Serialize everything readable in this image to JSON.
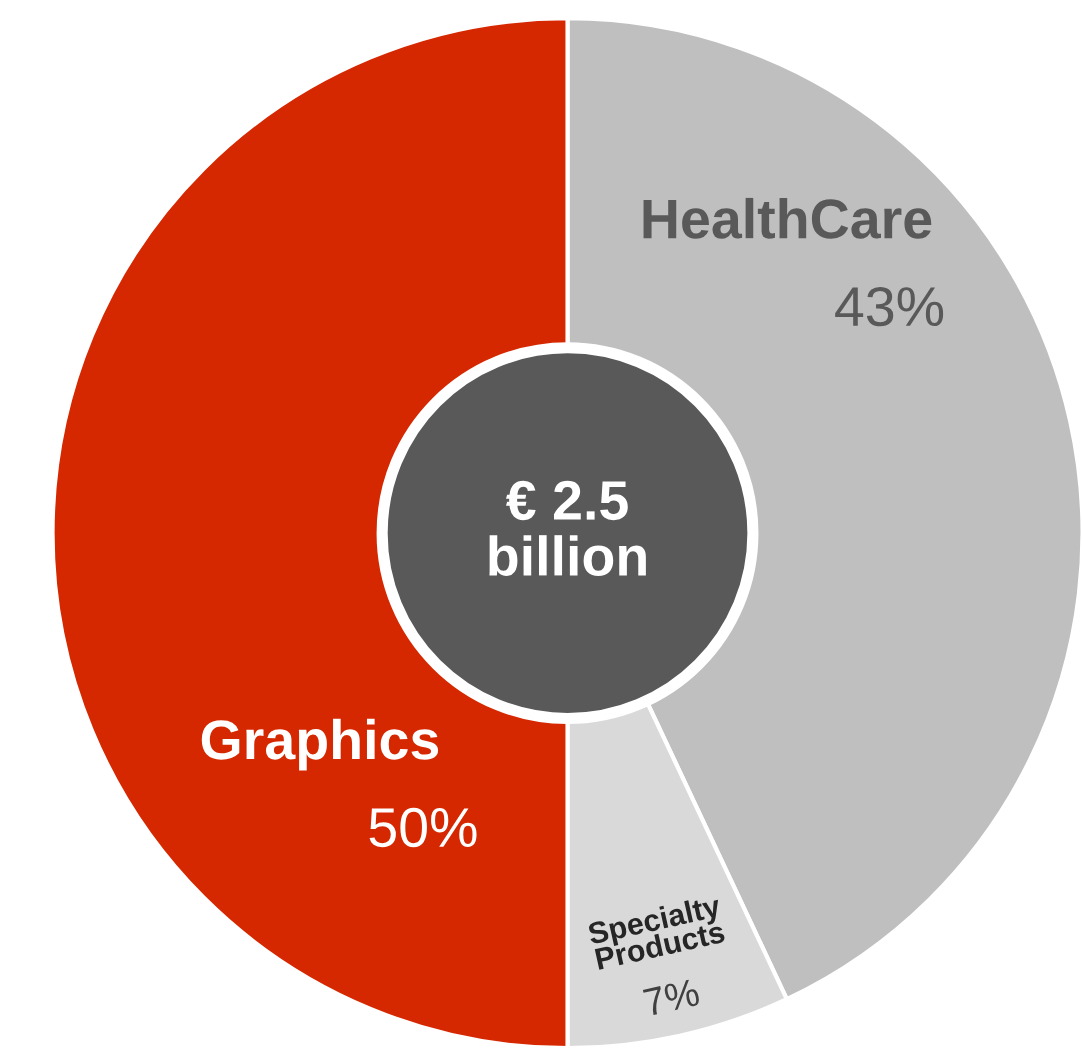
{
  "chart_data": {
    "type": "donut",
    "categories": [
      "HealthCare",
      "Specialty\nProducts",
      "Graphics"
    ],
    "values": [
      43,
      7,
      50
    ],
    "value_labels": [
      "43%",
      "7%",
      "50%"
    ],
    "colors": [
      "#bfbfbf",
      "#d9d9d9",
      "#d62800"
    ],
    "annotations": [
      "€ 2.5\nbillion"
    ]
  }
}
